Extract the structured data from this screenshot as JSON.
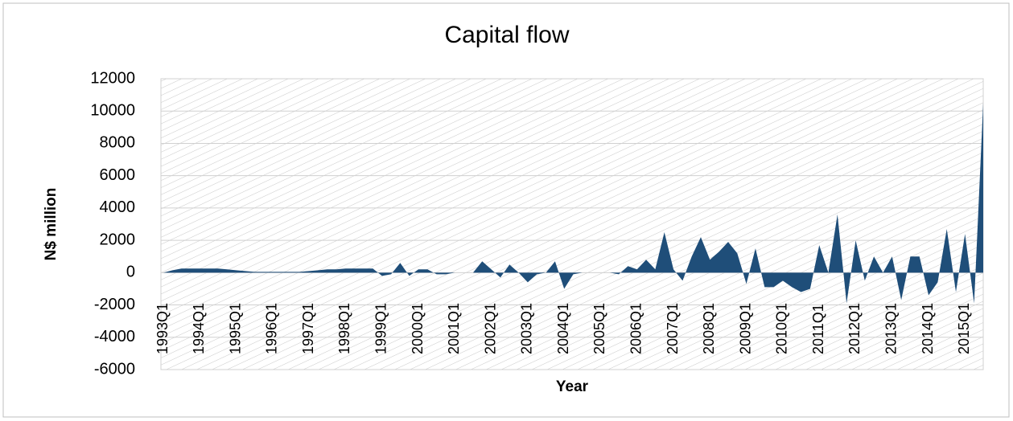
{
  "chart_data": {
    "type": "area",
    "title": "Capital flow",
    "xlabel": "Year",
    "ylabel": "N$ million",
    "categories": [
      "1993Q1",
      null,
      null,
      null,
      "1994Q1",
      null,
      null,
      null,
      "1995Q1",
      null,
      null,
      null,
      "1996Q1",
      null,
      null,
      null,
      "1997Q1",
      null,
      null,
      null,
      "1998Q1",
      null,
      null,
      null,
      "1999Q1",
      null,
      null,
      null,
      "2000Q1",
      null,
      null,
      null,
      "2001Q1",
      null,
      null,
      null,
      "2002Q1",
      null,
      null,
      null,
      "2003Q1",
      null,
      null,
      null,
      "2004Q1",
      null,
      null,
      null,
      "2005Q1",
      null,
      null,
      null,
      "2006Q1",
      null,
      null,
      null,
      "2007Q1",
      null,
      null,
      null,
      "2008Q1",
      null,
      null,
      null,
      "2009Q1",
      null,
      null,
      null,
      "2010Q1",
      null,
      null,
      null,
      "2011Q1",
      null,
      null,
      null,
      "2012Q1",
      null,
      null,
      null,
      "2013Q1",
      null,
      null,
      null,
      "2014Q1",
      null,
      null,
      null,
      "2015Q1",
      null,
      null
    ],
    "values": [
      0,
      150,
      250,
      250,
      250,
      250,
      250,
      200,
      150,
      100,
      50,
      50,
      50,
      50,
      50,
      50,
      100,
      150,
      200,
      200,
      250,
      250,
      250,
      250,
      -200,
      -100,
      600,
      -200,
      200,
      200,
      -100,
      -100,
      0,
      0,
      0,
      700,
      200,
      -300,
      500,
      0,
      -600,
      -100,
      0,
      700,
      -1000,
      -100,
      0,
      0,
      0,
      0,
      -100,
      400,
      200,
      800,
      200,
      2500,
      200,
      -500,
      1000,
      2200,
      800,
      1300,
      1900,
      1200,
      -700,
      1500,
      -900,
      -900,
      -500,
      -900,
      -1200,
      -1000,
      1700,
      0,
      3600,
      -1900,
      2000,
      -500,
      1000,
      0,
      1000,
      -1700,
      1000,
      1000,
      -1400,
      -600,
      2700,
      -1200,
      2400,
      -1900,
      10500
    ],
    "color": "#1f4e79",
    "ylim": [
      -6000,
      12000
    ],
    "yticks": [
      -6000,
      -4000,
      -2000,
      0,
      2000,
      4000,
      6000,
      8000,
      10000,
      12000
    ],
    "grid": true
  }
}
